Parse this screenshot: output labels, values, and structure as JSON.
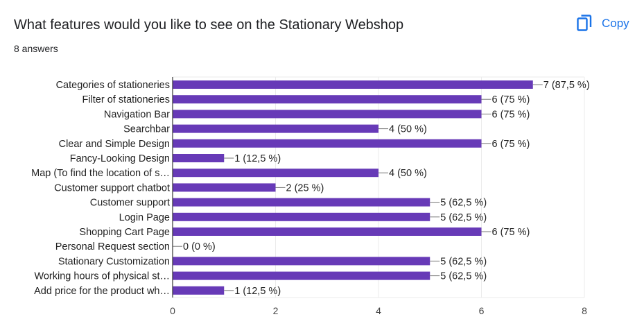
{
  "header": {
    "title": "What features would you like to see on the Stationary Webshop",
    "answers": "8 answers",
    "copy_label": "Copy"
  },
  "colors": {
    "bar": "#673ab7",
    "grid": "#ebebeb",
    "axis": "#333333",
    "text": "#222222"
  },
  "chart_data": {
    "type": "bar",
    "orientation": "horizontal",
    "categories": [
      "Categories of stationeries",
      "Filter of stationeries",
      "Navigation Bar",
      "Searchbar",
      "Clear and Simple Design",
      "Fancy-Looking Design",
      "Map (To find the location of s…",
      "Customer support chatbot",
      "Customer support",
      "Login Page",
      "Shopping Cart Page",
      "Personal Request section",
      "Stationary Customization",
      "Working hours of physical st…",
      "Add price for the product wh…"
    ],
    "values": [
      7,
      6,
      6,
      4,
      6,
      1,
      4,
      2,
      5,
      5,
      6,
      0,
      5,
      5,
      1
    ],
    "data_labels": [
      "7 (87,5 %)",
      "6 (75 %)",
      "6 (75 %)",
      "4 (50 %)",
      "6 (75 %)",
      "1 (12,5 %)",
      "4 (50 %)",
      "2 (25 %)",
      "5 (62,5 %)",
      "5 (62,5 %)",
      "6 (75 %)",
      "0 (0 %)",
      "5 (62,5 %)",
      "5 (62,5 %)",
      "1 (12,5 %)"
    ],
    "x_ticks": [
      "0",
      "2",
      "4",
      "6",
      "8"
    ],
    "xlim": [
      0,
      8
    ],
    "grid": true,
    "legend": "none"
  }
}
